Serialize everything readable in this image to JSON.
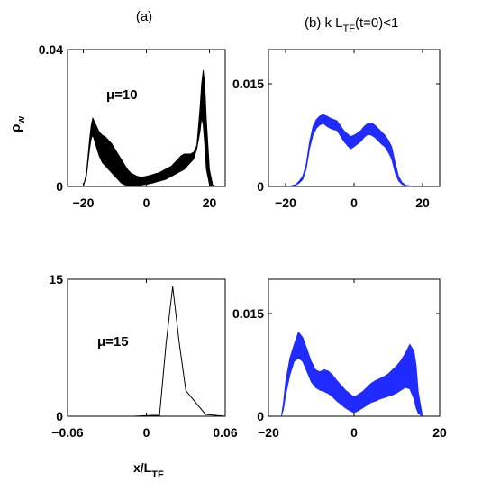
{
  "figure": {
    "title_a": "(a)",
    "title_b": "(b) k L",
    "title_b_sub": "TF",
    "title_b_tail": "(t=0)<1",
    "ylabel_main": "ρ",
    "ylabel_sub": "w",
    "xlabel_main": "x/L",
    "xlabel_sub": "TF"
  },
  "chart_data": [
    {
      "id": "a-top",
      "type": "area",
      "color": "#000000",
      "xlim": [
        -25,
        25
      ],
      "ylim": [
        0,
        0.04
      ],
      "xticks": [
        -20,
        0,
        20
      ],
      "xtick_labels": [
        "−20",
        "0",
        "20"
      ],
      "yticks": [
        0,
        0.04
      ],
      "ytick_labels": [
        "0",
        "0.04"
      ],
      "annotation": "μ=10",
      "x": [
        -20,
        -19,
        -18,
        -17.5,
        -17,
        -16,
        -15,
        -14,
        -13,
        -12,
        -11,
        -10,
        -9,
        -8,
        -7,
        -6,
        -5,
        -4,
        -3,
        -2,
        -1,
        0,
        1,
        2,
        3,
        4,
        5,
        6,
        7,
        8,
        9,
        10,
        11,
        12,
        13,
        14,
        15,
        16,
        17,
        17.5,
        18,
        18.5,
        19,
        20,
        21,
        22
      ],
      "lower": [
        0,
        0.003,
        0.011,
        0.014,
        0.015,
        0.012,
        0.009,
        0.007,
        0.006,
        0.005,
        0.004,
        0.003,
        0.002,
        0.001,
        0.0005,
        0.0003,
        0.0002,
        0.0002,
        0.0002,
        0.0003,
        0.0005,
        0.0006,
        0.0008,
        0.001,
        0.0013,
        0.0015,
        0.0018,
        0.002,
        0.0025,
        0.003,
        0.0035,
        0.004,
        0.0045,
        0.005,
        0.006,
        0.007,
        0.008,
        0.011,
        0.016,
        0.02,
        0.018,
        0.012,
        0.005,
        0.0005,
        0,
        0
      ],
      "upper": [
        0,
        0.004,
        0.014,
        0.018,
        0.02,
        0.018,
        0.016,
        0.015,
        0.0145,
        0.0135,
        0.0125,
        0.011,
        0.0095,
        0.008,
        0.0065,
        0.005,
        0.004,
        0.0035,
        0.003,
        0.0028,
        0.0028,
        0.003,
        0.0032,
        0.0035,
        0.0038,
        0.004,
        0.0045,
        0.005,
        0.0055,
        0.006,
        0.007,
        0.008,
        0.009,
        0.0095,
        0.0095,
        0.0095,
        0.01,
        0.012,
        0.023,
        0.03,
        0.034,
        0.03,
        0.02,
        0.005,
        0.0005,
        0
      ]
    },
    {
      "id": "b-top",
      "type": "area",
      "color": "#1f2bff",
      "xlim": [
        -25,
        25
      ],
      "ylim": [
        0,
        0.02
      ],
      "xticks": [
        -20,
        0,
        20
      ],
      "xtick_labels": [
        "−20",
        "0",
        "20"
      ],
      "yticks": [
        0,
        0.015
      ],
      "ytick_labels": [
        "0",
        "0.015"
      ],
      "x": [
        -19,
        -17,
        -16,
        -15,
        -14,
        -13,
        -12,
        -11,
        -10,
        -9,
        -8,
        -7,
        -6,
        -5,
        -4,
        -3,
        -2,
        -1,
        0,
        1,
        2,
        3,
        4,
        5,
        6,
        7,
        8,
        9,
        10,
        11,
        12,
        13,
        14,
        15,
        16,
        17
      ],
      "lower": [
        0,
        0.0002,
        0.0005,
        0.001,
        0.0025,
        0.0055,
        0.0075,
        0.0085,
        0.009,
        0.0092,
        0.0088,
        0.0085,
        0.0083,
        0.0082,
        0.0074,
        0.0066,
        0.006,
        0.0055,
        0.0058,
        0.0062,
        0.0066,
        0.0072,
        0.0076,
        0.0075,
        0.0072,
        0.0067,
        0.0062,
        0.0058,
        0.005,
        0.004,
        0.002,
        0.0008,
        0.0003,
        0.0001,
        0,
        0
      ],
      "upper": [
        0,
        0.0003,
        0.0008,
        0.0015,
        0.0032,
        0.0065,
        0.0088,
        0.0098,
        0.0103,
        0.0105,
        0.0103,
        0.01,
        0.0098,
        0.0096,
        0.0089,
        0.0082,
        0.0077,
        0.0073,
        0.0075,
        0.0078,
        0.0082,
        0.0088,
        0.0092,
        0.0093,
        0.009,
        0.0085,
        0.008,
        0.0075,
        0.0068,
        0.0058,
        0.0035,
        0.0015,
        0.0006,
        0.0002,
        0.0001,
        0
      ]
    },
    {
      "id": "a-bottom",
      "type": "line",
      "color": "#000000",
      "xlim": [
        -0.06,
        0.06
      ],
      "ylim": [
        0,
        15
      ],
      "xticks": [
        -0.06,
        0,
        0.06
      ],
      "xtick_labels": [
        "−0.06",
        "0",
        "0.06"
      ],
      "yticks": [
        0,
        15
      ],
      "ytick_labels": [
        "0",
        "15"
      ],
      "annotation": "μ=15",
      "x": [
        -0.06,
        -0.01,
        0.005,
        0.01,
        0.015,
        0.02,
        0.025,
        0.03,
        0.045,
        0.06
      ],
      "y": [
        0,
        0,
        0.1,
        0.1,
        8,
        14.2,
        8,
        2.8,
        0.2,
        0
      ]
    },
    {
      "id": "b-bottom",
      "type": "area",
      "color": "#1f2bff",
      "xlim": [
        -20,
        20
      ],
      "ylim": [
        0,
        0.02
      ],
      "xticks": [
        -20,
        0,
        20
      ],
      "xtick_labels": [
        "−20",
        "0",
        "20"
      ],
      "yticks": [
        0,
        0.015
      ],
      "ytick_labels": [
        "0",
        "0.015"
      ],
      "x": [
        -17,
        -16.5,
        -16,
        -15,
        -14,
        -13,
        -12,
        -11,
        -10,
        -9,
        -8,
        -7,
        -6,
        -5,
        -4,
        -3,
        -2,
        -1,
        0,
        1,
        2,
        3,
        4,
        5,
        6,
        7,
        8,
        9,
        10,
        11,
        12,
        13,
        14,
        14.5,
        15,
        16
      ],
      "lower": [
        0,
        0.001,
        0.003,
        0.006,
        0.008,
        0.0085,
        0.008,
        0.0065,
        0.005,
        0.0042,
        0.0038,
        0.0036,
        0.0033,
        0.0028,
        0.0022,
        0.0017,
        0.0012,
        0.0008,
        0.0005,
        0.0008,
        0.0012,
        0.0016,
        0.002,
        0.0022,
        0.0025,
        0.0027,
        0.0029,
        0.0031,
        0.0034,
        0.0038,
        0.0042,
        0.004,
        0.0025,
        0.0012,
        0.0004,
        0
      ],
      "upper": [
        0,
        0.002,
        0.005,
        0.0085,
        0.0105,
        0.0123,
        0.0115,
        0.0098,
        0.008,
        0.0068,
        0.0065,
        0.0068,
        0.0066,
        0.006,
        0.0052,
        0.0045,
        0.0038,
        0.0033,
        0.0028,
        0.0032,
        0.0036,
        0.0042,
        0.0048,
        0.0052,
        0.0055,
        0.0058,
        0.0062,
        0.0068,
        0.0074,
        0.0082,
        0.0092,
        0.0105,
        0.0095,
        0.0075,
        0.0035,
        0
      ]
    }
  ]
}
